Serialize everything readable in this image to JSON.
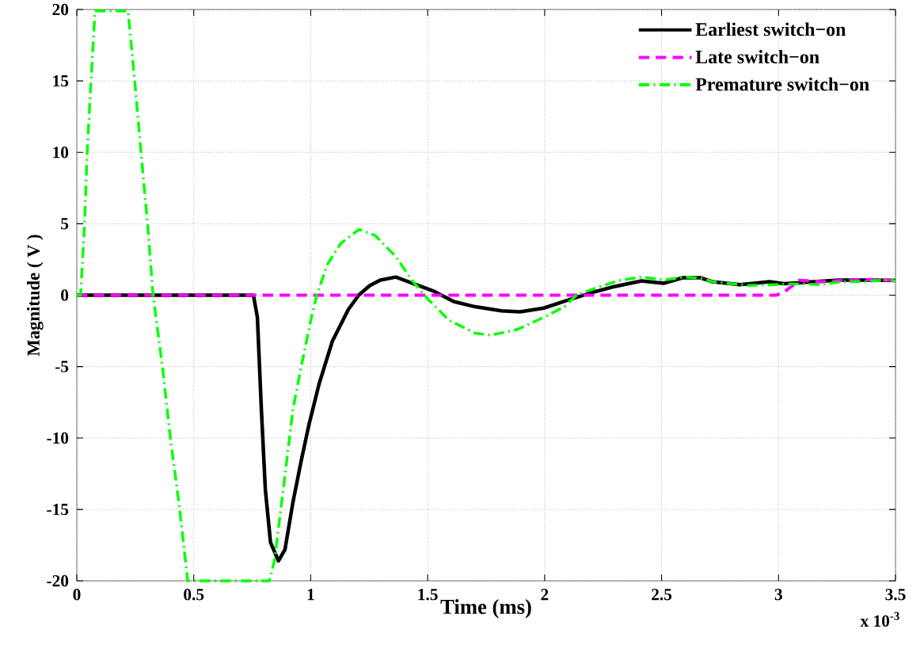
{
  "chart_data": {
    "type": "line",
    "xlabel": "Time (ms)",
    "ylabel": "Magnitude ( V )",
    "xlim": [
      0,
      3.5
    ],
    "ylim": [
      -20,
      20
    ],
    "xticks": [
      0,
      0.5,
      1,
      1.5,
      2,
      2.5,
      3,
      3.5
    ],
    "yticks": [
      -20,
      -15,
      -10,
      -5,
      0,
      5,
      10,
      15,
      20
    ],
    "grid": true,
    "legend": "top right",
    "annotations": [
      "x 10$^{-3}$"
    ],
    "series": [
      {
        "name": "Earliest switch−on",
        "color": "#000000",
        "line_style": "solid",
        "x": [
          0,
          0.755,
          0.772,
          0.789,
          0.806,
          0.828,
          0.862,
          0.89,
          0.924,
          0.958,
          0.992,
          1.036,
          1.093,
          1.161,
          1.205,
          1.252,
          1.297,
          1.364,
          1.432,
          1.523,
          1.611,
          1.703,
          1.815,
          1.895,
          1.997,
          2.09,
          2.2,
          2.285,
          2.414,
          2.508,
          2.59,
          2.666,
          2.718,
          2.835,
          2.962,
          3.023,
          3.15,
          3.255,
          3.407,
          3.5
        ],
        "values": [
          0,
          0,
          -1.55,
          -8.0,
          -13.6,
          -17.3,
          -18.6,
          -17.8,
          -14.5,
          -11.7,
          -9.1,
          -6.2,
          -3.2,
          -1.0,
          0,
          0.67,
          1.05,
          1.27,
          0.85,
          0.3,
          -0.44,
          -0.81,
          -1.09,
          -1.17,
          -0.9,
          -0.4,
          0.17,
          0.55,
          1.0,
          0.83,
          1.22,
          1.22,
          0.94,
          0.74,
          0.94,
          0.8,
          0.94,
          1.05,
          1.06,
          1.03
        ]
      },
      {
        "name": "Late switch−on",
        "color": "#ff00ff",
        "line_style": "dashed",
        "x": [
          0,
          2.99,
          3.02,
          3.09,
          3.18,
          3.3,
          3.4,
          3.5
        ],
        "values": [
          0,
          0,
          0.17,
          1.05,
          0.94,
          1.05,
          1.1,
          1.03
        ]
      },
      {
        "name": "Premature switch−on",
        "color": "#00ff00",
        "line_style": "dashdot",
        "x": [
          0,
          0.016,
          0.033,
          0.044,
          0.061,
          0.078,
          0.219,
          0.247,
          0.275,
          0.303,
          0.326,
          0.366,
          0.4,
          0.44,
          0.474,
          0.823,
          0.845,
          0.89,
          0.924,
          0.958,
          1.003,
          1.026,
          1.071,
          1.127,
          1.206,
          1.274,
          1.364,
          1.432,
          1.5,
          1.59,
          1.703,
          1.77,
          1.883,
          1.997,
          2.085,
          2.136,
          2.227,
          2.32,
          2.414,
          2.508,
          2.6,
          2.67,
          2.718,
          2.87,
          2.986,
          3.09,
          3.17,
          3.27,
          3.36,
          3.45,
          3.5
        ],
        "values": [
          0,
          0,
          4.9,
          9.9,
          15.1,
          19.9,
          19.9,
          15.1,
          9.9,
          4.9,
          0,
          -5,
          -10,
          -15,
          -20,
          -20,
          -18.6,
          -12.6,
          -8.0,
          -5.1,
          -1.55,
          0,
          2.15,
          3.6,
          4.6,
          4.2,
          2.7,
          1.05,
          -0.26,
          -1.74,
          -2.66,
          -2.8,
          -2.4,
          -1.55,
          -0.8,
          0,
          0.55,
          1.03,
          1.27,
          1.06,
          1.27,
          1.18,
          0.94,
          0.68,
          0.74,
          0.8,
          0.74,
          0.94,
          0.94,
          1.06,
          1.0
        ]
      }
    ]
  }
}
